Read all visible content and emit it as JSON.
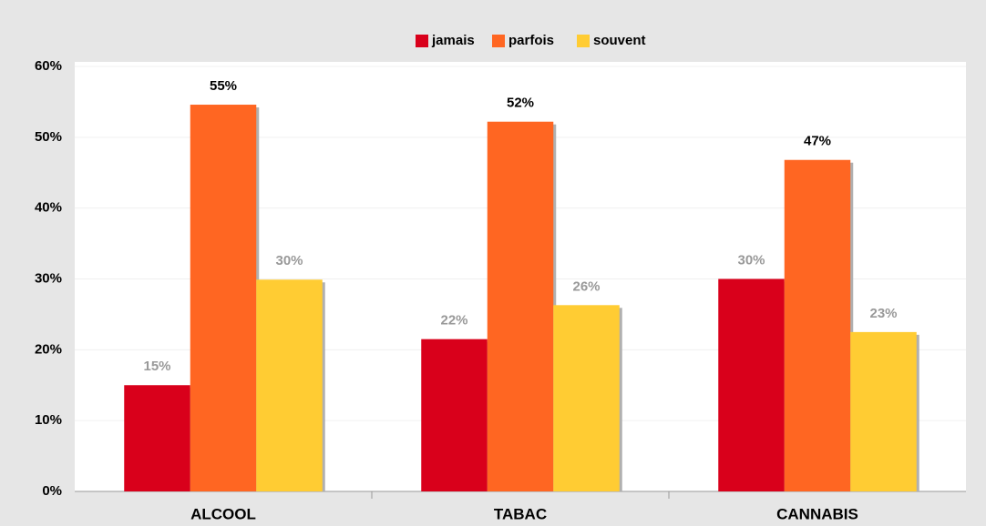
{
  "chart_data": {
    "type": "bar",
    "categories": [
      "ALCOOL",
      "TABAC",
      "CANNABIS"
    ],
    "series": [
      {
        "name": "jamais",
        "color": "#d9001b",
        "label_color": "#999999",
        "values": [
          15,
          21.5,
          30
        ],
        "value_labels": [
          "15%",
          "22%",
          "30%"
        ]
      },
      {
        "name": "parfois",
        "color": "#ff6622",
        "label_color": "#000000",
        "values": [
          54.6,
          52.2,
          46.8
        ],
        "value_labels": [
          "55%",
          "52%",
          "47%"
        ]
      },
      {
        "name": "souvent",
        "color": "#ffcc33",
        "label_color": "#999999",
        "values": [
          29.9,
          26.3,
          22.5
        ],
        "value_labels": [
          "30%",
          "26%",
          "23%"
        ]
      }
    ],
    "ylim": [
      0,
      60
    ],
    "yticks": [
      {
        "value": 0,
        "label": "0%"
      },
      {
        "value": 10,
        "label": "10%"
      },
      {
        "value": 20,
        "label": "20%"
      },
      {
        "value": 30,
        "label": "30%"
      },
      {
        "value": 40,
        "label": "40%"
      },
      {
        "value": 50,
        "label": "50%"
      },
      {
        "value": 60,
        "label": "60%"
      }
    ],
    "grid": true,
    "legend": "top"
  }
}
